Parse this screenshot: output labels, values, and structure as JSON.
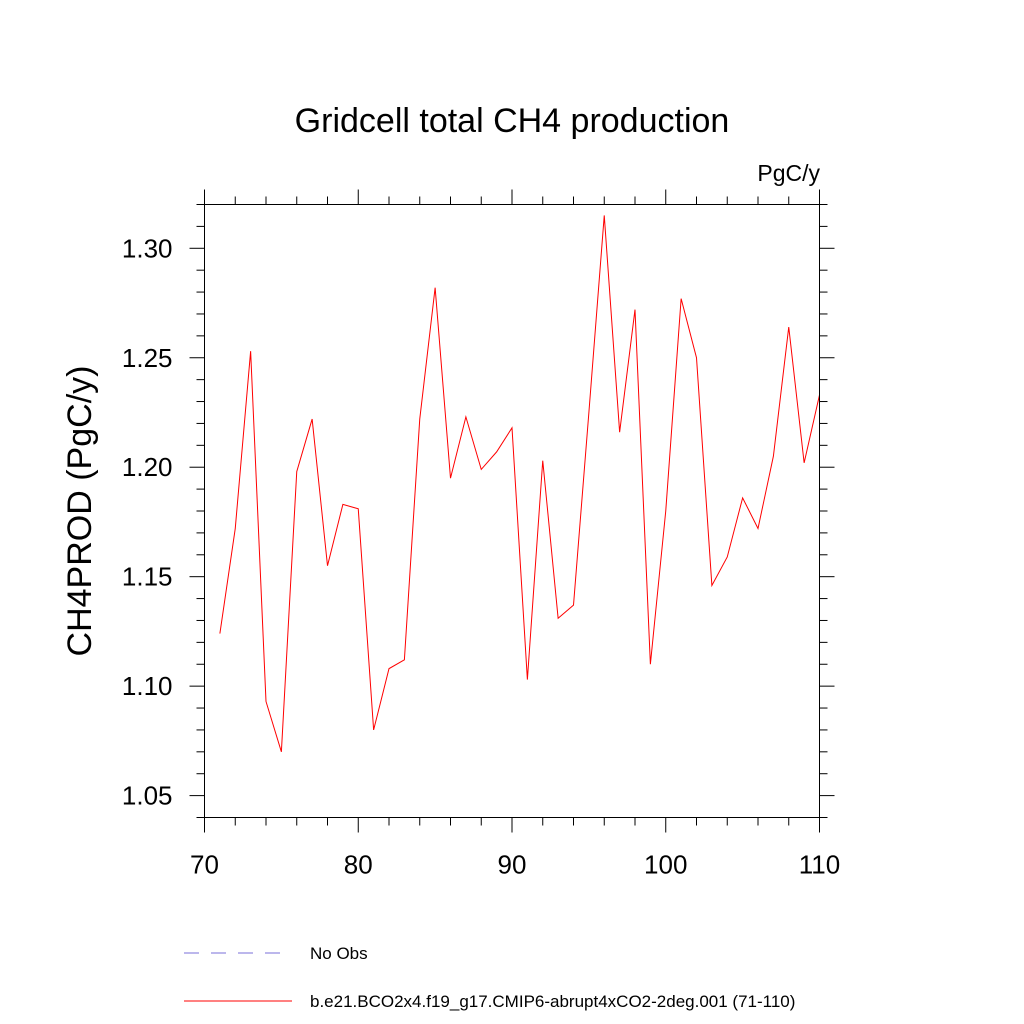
{
  "chart_data": {
    "type": "line",
    "title": "Gridcell total CH4 production",
    "units": "PgC/y",
    "xlabel": "",
    "ylabel": "CH4PROD  (PgC/y)",
    "xlim": [
      70,
      110
    ],
    "ylim": [
      1.04,
      1.32
    ],
    "x_major_ticks": [
      70,
      80,
      90,
      100,
      110
    ],
    "x_tick_labels": [
      "70",
      "80",
      "90",
      "100",
      "110"
    ],
    "x_minor_step": 2,
    "y_major_ticks": [
      1.05,
      1.1,
      1.15,
      1.2,
      1.25,
      1.3
    ],
    "y_tick_labels": [
      "1.05",
      "1.10",
      "1.15",
      "1.20",
      "1.25",
      "1.30"
    ],
    "y_minor_step": 0.01,
    "grid": false,
    "series": [
      {
        "name": "b.e21.BCO2x4.f19_g17.CMIP6-abrupt4xCO2-2deg.001 (71-110)",
        "color": "#ff0000",
        "style": "solid",
        "x": [
          71,
          72,
          73,
          74,
          75,
          76,
          77,
          78,
          79,
          80,
          81,
          82,
          83,
          84,
          85,
          86,
          87,
          88,
          89,
          90,
          91,
          92,
          93,
          94,
          95,
          96,
          97,
          98,
          99,
          100,
          101,
          102,
          103,
          104,
          105,
          106,
          107,
          108,
          109,
          110
        ],
        "values": [
          1.124,
          1.172,
          1.253,
          1.093,
          1.07,
          1.198,
          1.222,
          1.155,
          1.183,
          1.181,
          1.08,
          1.108,
          1.112,
          1.222,
          1.282,
          1.195,
          1.223,
          1.199,
          1.207,
          1.218,
          1.103,
          1.203,
          1.131,
          1.137,
          1.225,
          1.315,
          1.216,
          1.272,
          1.11,
          1.18,
          1.277,
          1.25,
          1.146,
          1.159,
          1.186,
          1.172,
          1.205,
          1.264,
          1.202,
          1.233
        ]
      }
    ],
    "legend": {
      "placement": "bottom",
      "entries": [
        {
          "label": "No Obs",
          "color": "#7a6fd8",
          "style": "dashed"
        },
        {
          "label": "b.e21.BCO2x4.f19_g17.CMIP6-abrupt4xCO2-2deg.001 (71-110)",
          "color": "#ff0000",
          "style": "solid"
        }
      ]
    }
  }
}
